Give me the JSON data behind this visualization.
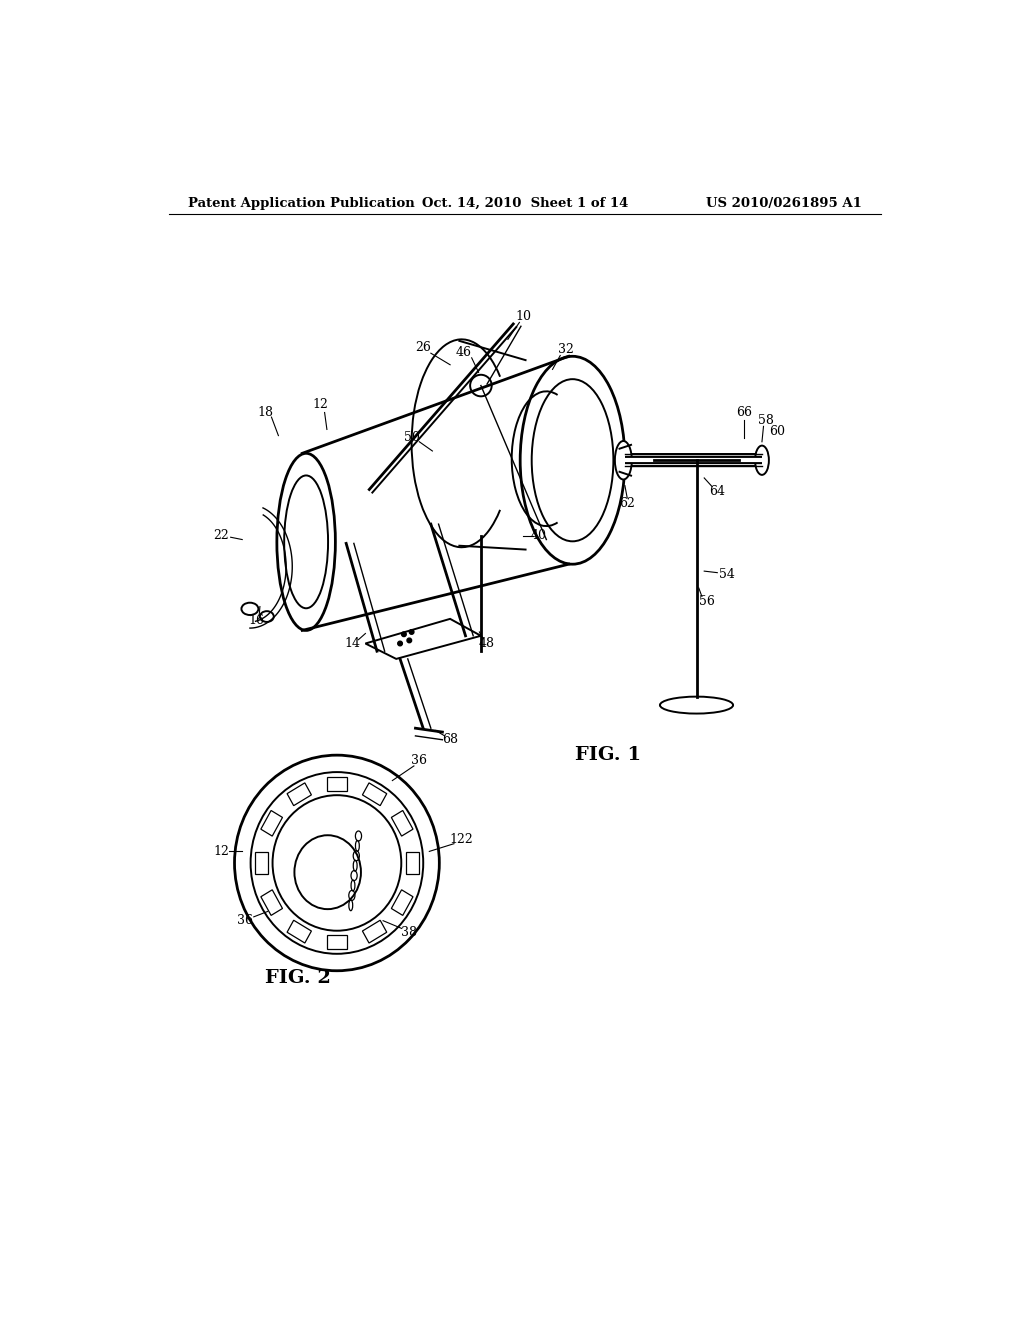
{
  "background_color": "#ffffff",
  "line_color": "#000000",
  "header": {
    "left": "Patent Application Publication",
    "center": "Oct. 14, 2010  Sheet 1 of 14",
    "right": "US 2010/0261895 A1"
  },
  "fig1_label": "FIG. 1",
  "fig2_label": "FIG. 2"
}
